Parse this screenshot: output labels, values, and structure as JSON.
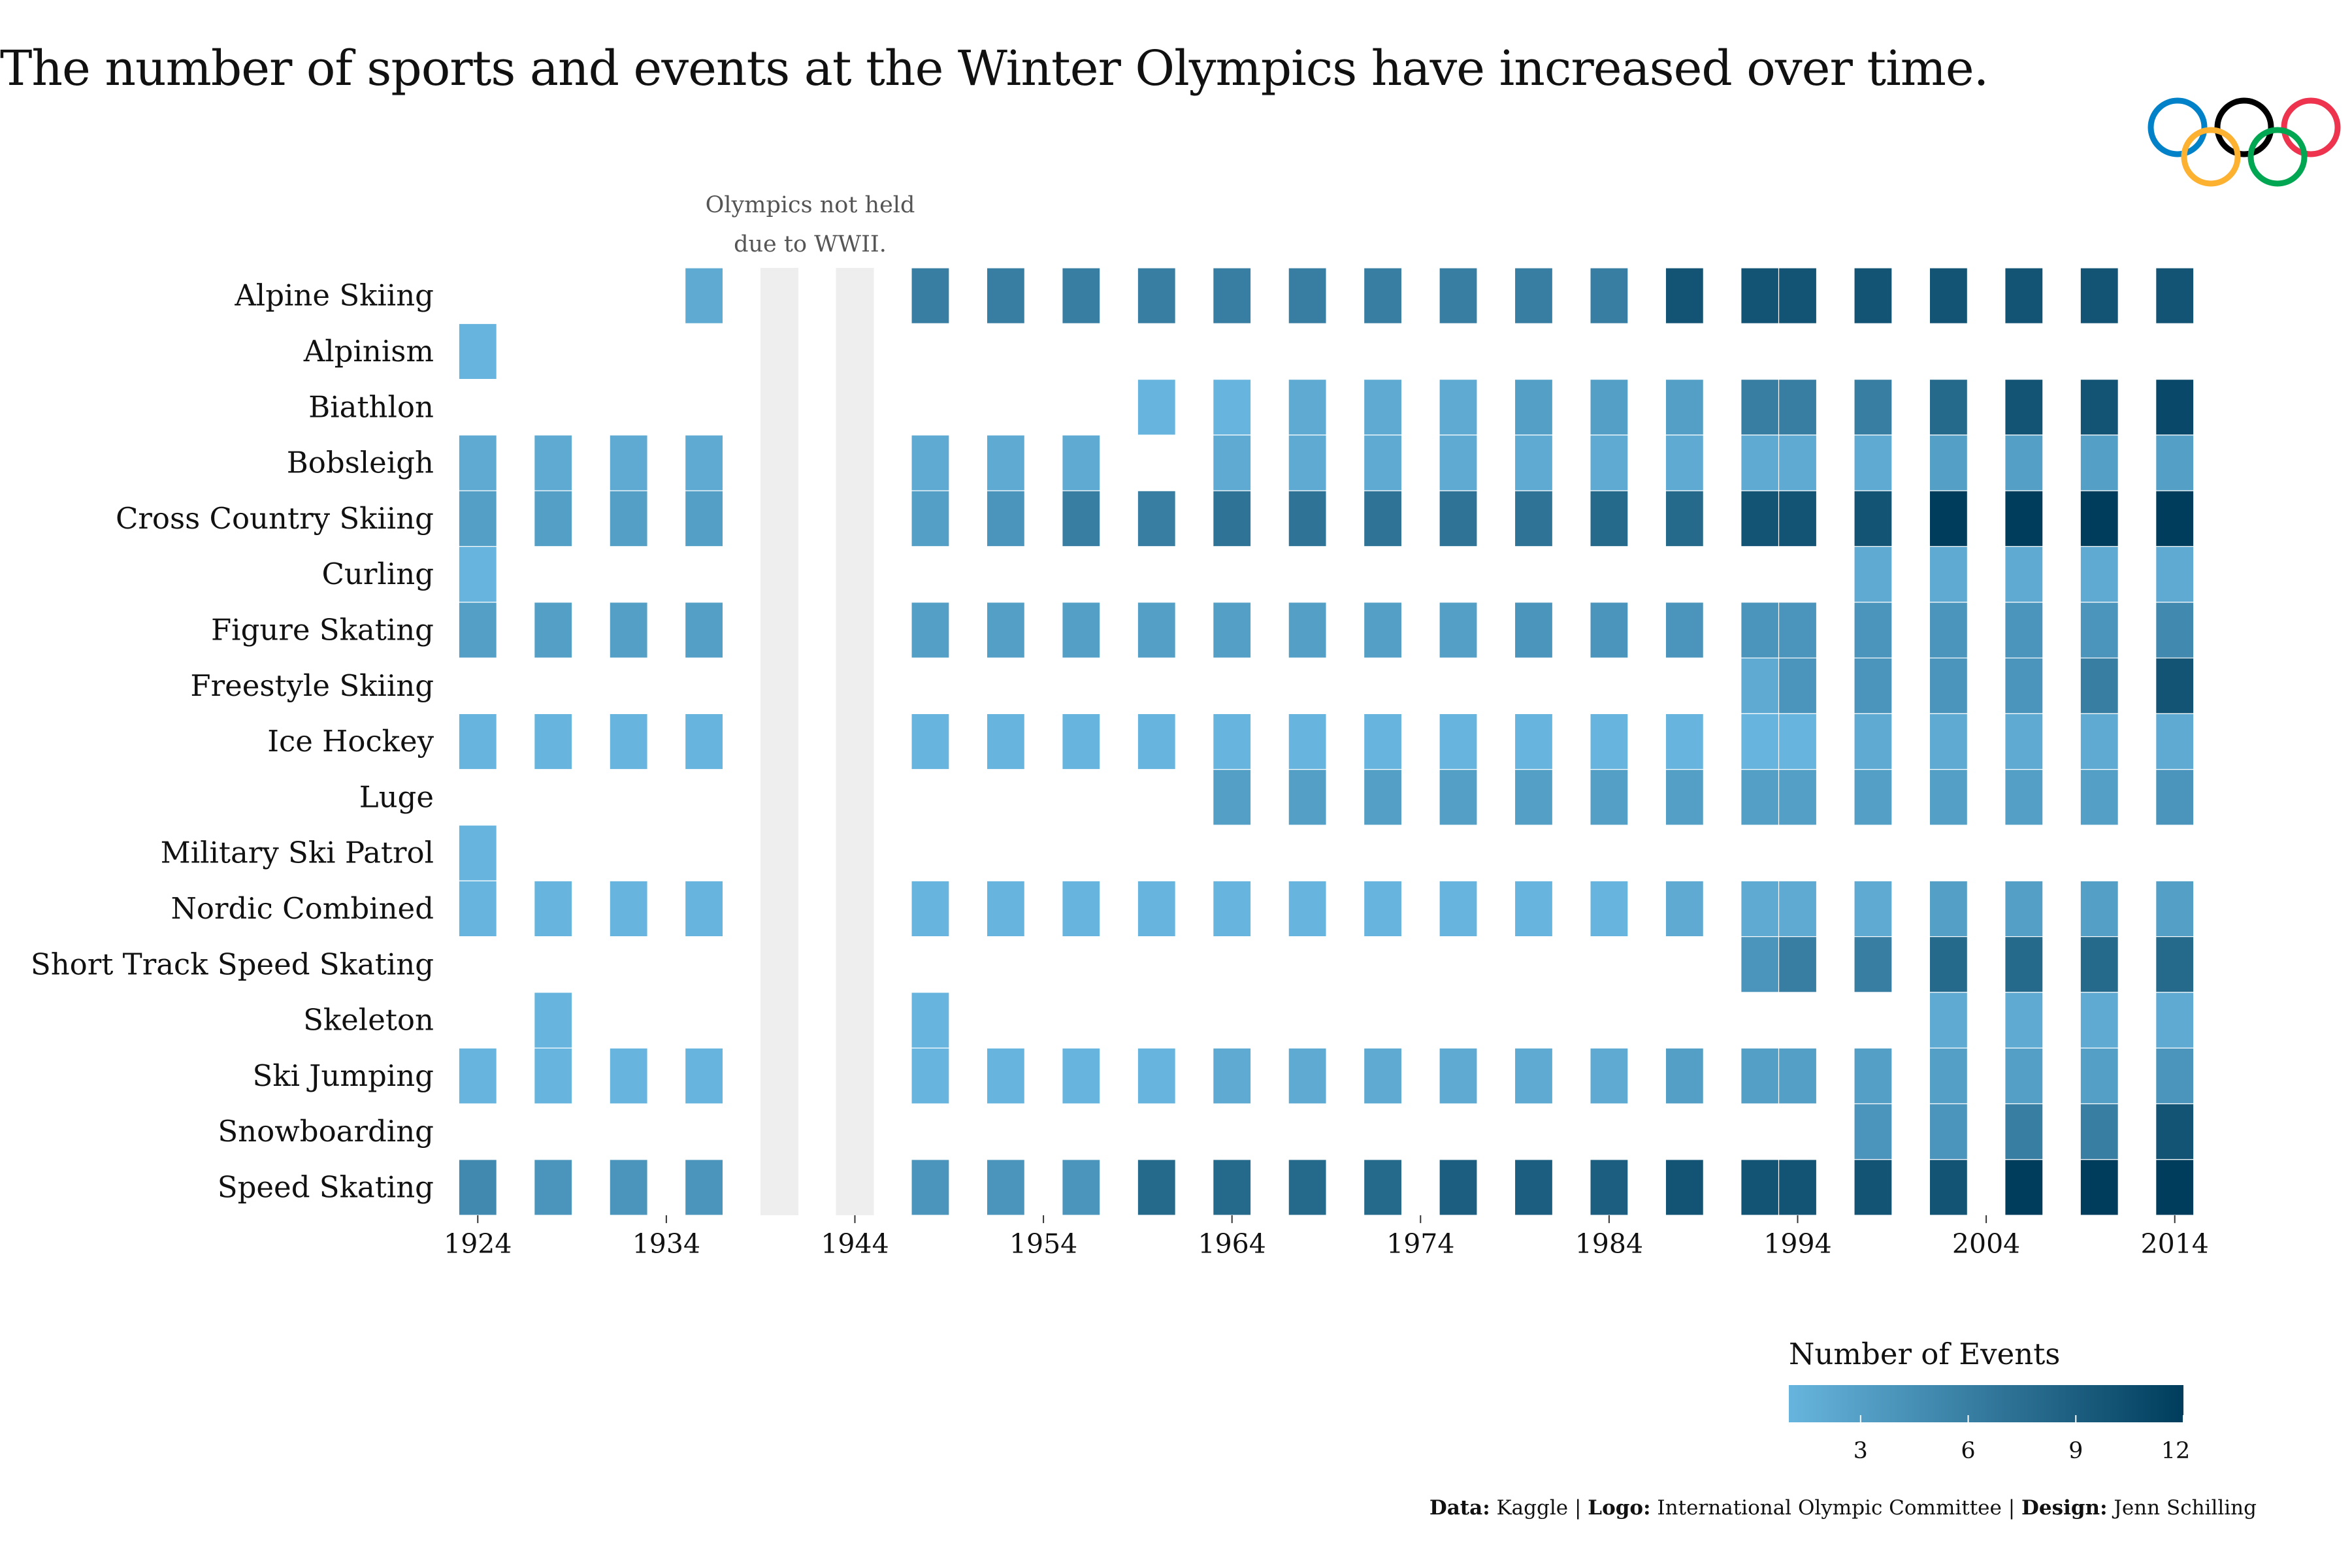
{
  "title": "The number of sports and events at the Winter Olympics have increased over time.",
  "logo": {
    "name": "Olympic rings",
    "ring_colors": [
      "#0081c8",
      "#000000",
      "#ee334e",
      "#fcb131",
      "#00a651"
    ]
  },
  "annotation": {
    "line1": "Olympics not held",
    "line2": "due to WWII."
  },
  "legend": {
    "title": "Number of Events",
    "ticks": [
      3,
      6,
      9,
      12
    ],
    "range": [
      1,
      12
    ],
    "color_low": "#67b5de",
    "color_high": "#003d5c"
  },
  "caption": {
    "data_label": "Data:",
    "data_value": "Kaggle",
    "logo_label": "Logo:",
    "logo_value": "International Olympic Committee",
    "design_label": "Design:",
    "design_value": "Jenn Schilling",
    "separator": "|"
  },
  "chart_data": {
    "type": "heatmap",
    "title": "The number of sports and events at the Winter Olympics have increased over time.",
    "x": [
      1924,
      1928,
      1932,
      1936,
      1948,
      1952,
      1956,
      1960,
      1964,
      1968,
      1972,
      1976,
      1980,
      1984,
      1988,
      1992,
      1994,
      1998,
      2002,
      2006,
      2010,
      2014
    ],
    "x_ticks": [
      1924,
      1934,
      1944,
      1954,
      1964,
      1974,
      1984,
      1994,
      2004,
      2014
    ],
    "xlim": [
      1922.5,
      2015.5
    ],
    "cancelled_years": [
      1940,
      1944
    ],
    "cancelled_color": "#eeeeee",
    "y": [
      "Alpine Skiing",
      "Alpinism",
      "Biathlon",
      "Bobsleigh",
      "Cross Country Skiing",
      "Curling",
      "Figure Skating",
      "Freestyle Skiing",
      "Ice Hockey",
      "Luge",
      "Military Ski Patrol",
      "Nordic Combined",
      "Short Track Speed Skating",
      "Skeleton",
      "Ski Jumping",
      "Snowboarding",
      "Speed Skating"
    ],
    "values": [
      [
        null,
        null,
        null,
        2,
        6,
        6,
        6,
        6,
        6,
        6,
        6,
        6,
        6,
        6,
        10,
        10,
        10,
        10,
        10,
        10,
        10,
        10
      ],
      [
        1,
        null,
        null,
        null,
        null,
        null,
        null,
        null,
        null,
        null,
        null,
        null,
        null,
        null,
        null,
        null,
        null,
        null,
        null,
        null,
        null,
        null
      ],
      [
        null,
        null,
        null,
        null,
        null,
        null,
        null,
        1,
        1,
        2,
        2,
        2,
        3,
        3,
        3,
        6,
        6,
        6,
        8,
        10,
        10,
        11
      ],
      [
        2,
        2,
        2,
        2,
        2,
        2,
        2,
        null,
        2,
        2,
        2,
        2,
        2,
        2,
        2,
        2,
        2,
        2,
        3,
        3,
        3,
        3
      ],
      [
        3,
        3,
        3,
        3,
        3,
        4,
        6,
        6,
        7,
        7,
        7,
        7,
        7,
        8,
        8,
        10,
        10,
        10,
        12,
        12,
        12,
        12
      ],
      [
        1,
        null,
        null,
        null,
        null,
        null,
        null,
        null,
        null,
        null,
        null,
        null,
        null,
        null,
        null,
        null,
        null,
        2,
        2,
        2,
        2,
        2
      ],
      [
        3,
        3,
        3,
        3,
        3,
        3,
        3,
        3,
        3,
        3,
        3,
        3,
        4,
        4,
        4,
        4,
        4,
        4,
        4,
        4,
        4,
        5
      ],
      [
        null,
        null,
        null,
        null,
        null,
        null,
        null,
        null,
        null,
        null,
        null,
        null,
        null,
        null,
        null,
        2,
        4,
        4,
        4,
        4,
        6,
        10
      ],
      [
        1,
        1,
        1,
        1,
        1,
        1,
        1,
        1,
        1,
        1,
        1,
        1,
        1,
        1,
        1,
        1,
        1,
        2,
        2,
        2,
        2,
        2
      ],
      [
        null,
        null,
        null,
        null,
        null,
        null,
        null,
        null,
        3,
        3,
        3,
        3,
        3,
        3,
        3,
        3,
        3,
        3,
        3,
        3,
        3,
        4
      ],
      [
        1,
        null,
        null,
        null,
        null,
        null,
        null,
        null,
        null,
        null,
        null,
        null,
        null,
        null,
        null,
        null,
        null,
        null,
        null,
        null,
        null,
        null
      ],
      [
        1,
        1,
        1,
        1,
        1,
        1,
        1,
        1,
        1,
        1,
        1,
        1,
        1,
        1,
        2,
        2,
        2,
        2,
        3,
        3,
        3,
        3
      ],
      [
        null,
        null,
        null,
        null,
        null,
        null,
        null,
        null,
        null,
        null,
        null,
        null,
        null,
        null,
        null,
        4,
        6,
        6,
        8,
        8,
        8,
        8
      ],
      [
        null,
        1,
        null,
        null,
        1,
        null,
        null,
        null,
        null,
        null,
        null,
        null,
        null,
        null,
        null,
        null,
        null,
        null,
        2,
        2,
        2,
        2
      ],
      [
        1,
        1,
        1,
        1,
        1,
        1,
        1,
        1,
        2,
        2,
        2,
        2,
        2,
        2,
        3,
        3,
        3,
        3,
        3,
        3,
        3,
        4
      ],
      [
        null,
        null,
        null,
        null,
        null,
        null,
        null,
        null,
        null,
        null,
        null,
        null,
        null,
        null,
        null,
        null,
        null,
        4,
        4,
        6,
        6,
        10
      ],
      [
        5,
        4,
        4,
        4,
        4,
        4,
        4,
        8,
        8,
        8,
        8,
        9,
        9,
        9,
        10,
        10,
        10,
        10,
        10,
        12,
        12,
        12
      ]
    ],
    "color_scale": {
      "label": "Number of Events",
      "min": 1,
      "max": 12,
      "low": "#67b5de",
      "high": "#003d5c"
    },
    "grid": false
  }
}
